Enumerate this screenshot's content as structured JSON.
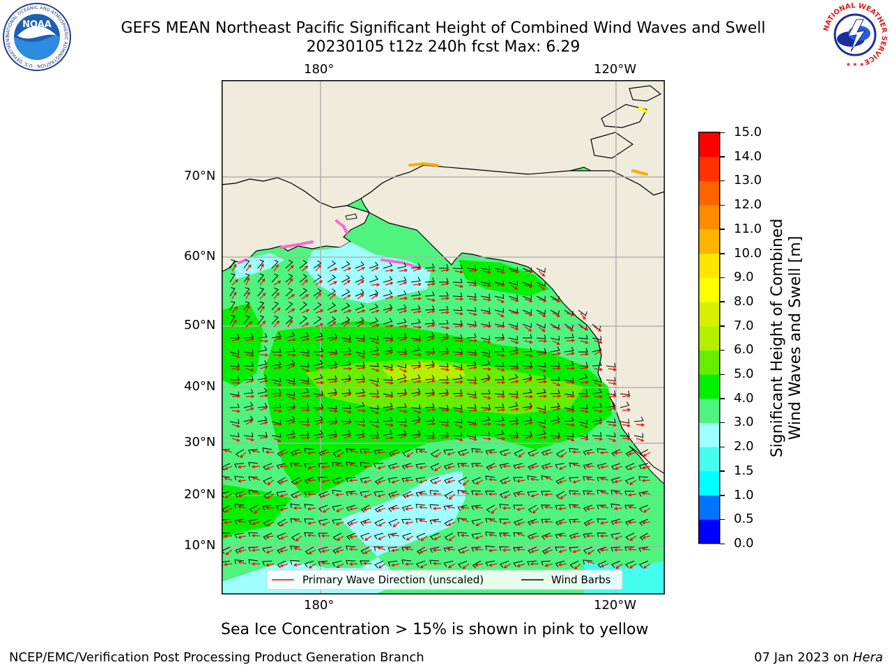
{
  "title": {
    "line1": "GEFS MEAN Northeast Pacific Significant Height of Combined Wind Waves and Swell",
    "line2": "20230105 t12z 240h fcst   Max: 6.29"
  },
  "logos": {
    "noaa_text": "NOAA",
    "noaa_ring_text": "NATIONAL OCEANIC AND ATMOSPHERIC ADMINISTRATION · U.S. DEPARTMENT OF COMMERCE",
    "nws_ring_text": "NATIONAL WEATHER SERVICE"
  },
  "map": {
    "top_lon_labels": [
      "180°",
      "120°W"
    ],
    "bottom_lon_labels": [
      "180°",
      "120°W"
    ],
    "lat_labels": [
      "70°N",
      "60°N",
      "50°N",
      "40°N",
      "30°N",
      "20°N",
      "10°N"
    ],
    "legend": {
      "wave_label": "Primary Wave Direction (unscaled)",
      "wind_label": "Wind Barbs",
      "wave_color": "#ff0000",
      "wind_color": "#000000"
    },
    "colors": {
      "land": "#efecdc",
      "ice": [
        "#ff66cc",
        "#ffaa00",
        "#ffff00"
      ]
    }
  },
  "colorbar": {
    "label_line1": "Significant Height of Combined",
    "label_line2": "Wind Waves and Swell [m]",
    "ticks": [
      "0.0",
      "0.5",
      "1.0",
      "1.5",
      "2.0",
      "3.0",
      "4.0",
      "5.0",
      "6.0",
      "7.0",
      "8.0",
      "9.0",
      "10.0",
      "11.0",
      "12.0",
      "13.0",
      "14.0",
      "15.0"
    ],
    "colors": [
      "#0000ff",
      "#0073ff",
      "#00ffff",
      "#44fff0",
      "#a0ffff",
      "#4ff47f",
      "#00f000",
      "#66ee00",
      "#b4f000",
      "#d8f000",
      "#ffff00",
      "#ffe600",
      "#ffb400",
      "#ff8c00",
      "#ff6400",
      "#ff3200",
      "#ff0000"
    ]
  },
  "note": "Sea Ice Concentration > 15% is shown in pink to yellow",
  "footer": {
    "left": "NCEP/EMC/Verification Post Processing Product Generation Branch",
    "right_prefix": "07 Jan 2023 on ",
    "right_host": "Hera"
  }
}
